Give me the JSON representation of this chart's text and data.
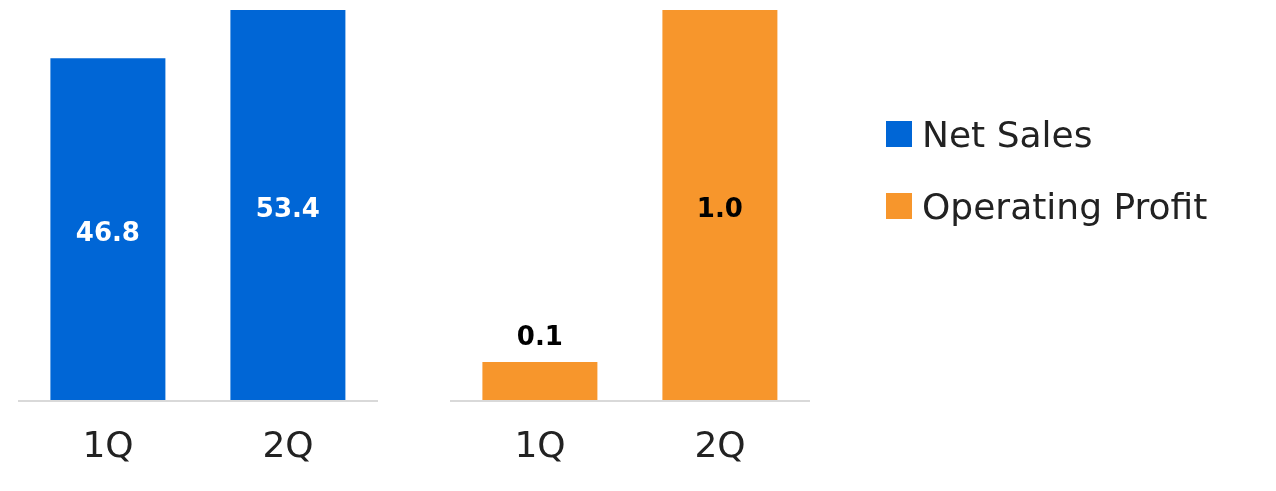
{
  "chart_data": [
    {
      "type": "bar",
      "categories": [
        "1Q",
        "2Q"
      ],
      "legend": "right",
      "series": [
        {
          "name": "Net Sales",
          "color": "#0066d6",
          "values": [
            46.8,
            53.4
          ],
          "value_labels": [
            "46.8",
            "53.4"
          ]
        }
      ]
    },
    {
      "type": "bar",
      "categories": [
        "1Q",
        "2Q"
      ],
      "legend": "right",
      "series": [
        {
          "name": "Operating Profit",
          "color": "#f7962c",
          "values": [
            0.1,
            1.0
          ],
          "value_labels": [
            "0.1",
            "1.0"
          ]
        }
      ]
    }
  ]
}
